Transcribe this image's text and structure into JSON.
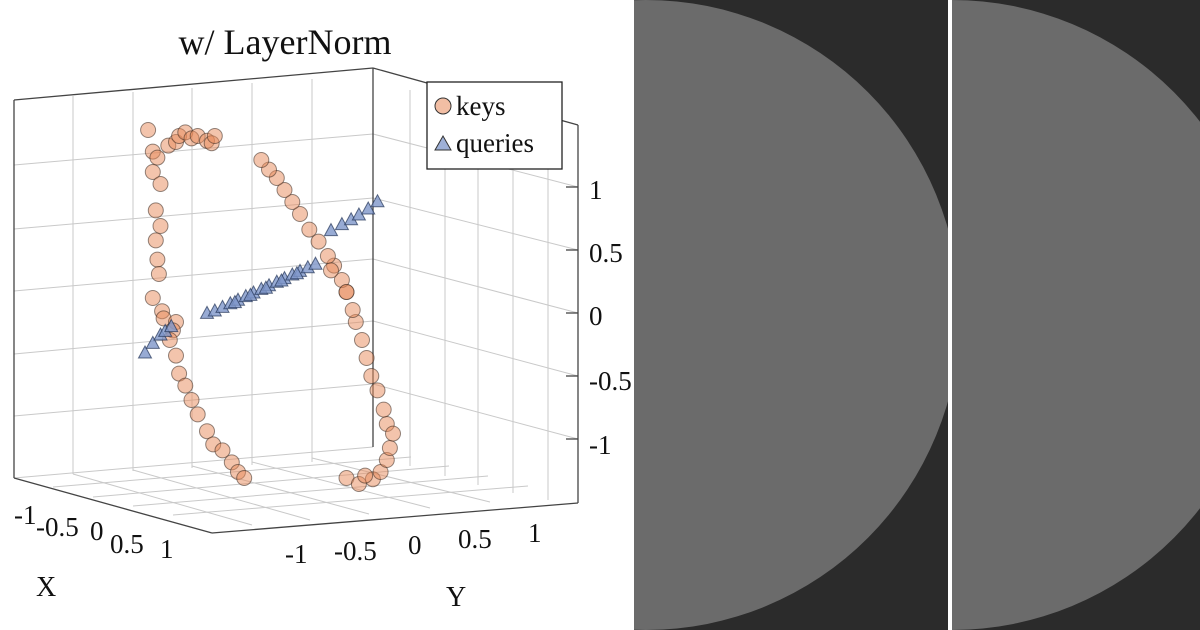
{
  "chart_data": {
    "type": "scatter",
    "title": "w/ LayerNorm",
    "xlabel": "X",
    "ylabel": "Y",
    "zlabel": "",
    "x_ticks": [
      "-1",
      "-0.5",
      "0",
      "0.5",
      "1"
    ],
    "y_ticks": [
      "-1",
      "-0.5",
      "0",
      "0.5",
      "1"
    ],
    "z_ticks": [
      "-1",
      "-0.5",
      "0",
      "0.5",
      "1"
    ],
    "xlim": [
      -1,
      1
    ],
    "ylim": [
      -1.3,
      1.2
    ],
    "zlim": [
      -1.4,
      1.5
    ],
    "grid": true,
    "legend": "top-right",
    "series": [
      {
        "name": "keys",
        "marker": "circle",
        "color": "#e8895a",
        "points": [
          [
            -0.95,
            0.02,
            1.37
          ],
          [
            -0.92,
            0.02,
            1.32
          ],
          [
            -0.95,
            0.02,
            1.2
          ],
          [
            -0.9,
            0.02,
            1.1
          ],
          [
            -0.93,
            0.02,
            0.88
          ],
          [
            -0.9,
            0.02,
            0.75
          ],
          [
            -0.93,
            0.02,
            0.63
          ],
          [
            -0.92,
            0.02,
            0.47
          ],
          [
            -0.91,
            0.02,
            0.35
          ],
          [
            -0.95,
            0.02,
            0.15
          ],
          [
            -0.89,
            0.02,
            0.04
          ],
          [
            -0.88,
            0.02,
            -0.02
          ],
          [
            -0.85,
            0.02,
            1.42
          ],
          [
            -0.8,
            0.02,
            1.45
          ],
          [
            -0.78,
            0.02,
            1.5
          ],
          [
            -0.74,
            0.02,
            1.53
          ],
          [
            -0.7,
            0.02,
            1.48
          ],
          [
            -0.66,
            0.02,
            1.5
          ],
          [
            -0.6,
            0.02,
            1.46
          ],
          [
            -0.57,
            0.02,
            1.44
          ],
          [
            -0.98,
            0.02,
            1.55
          ],
          [
            -0.55,
            0.02,
            1.5
          ],
          [
            -0.8,
            0.02,
            -0.05
          ],
          [
            -0.82,
            0.02,
            -0.12
          ],
          [
            -0.84,
            0.02,
            -0.2
          ],
          [
            -0.8,
            0.02,
            -0.33
          ],
          [
            -0.78,
            0.02,
            -0.48
          ],
          [
            -0.74,
            0.02,
            -0.58
          ],
          [
            -0.7,
            0.02,
            -0.7
          ],
          [
            -0.66,
            0.02,
            -0.82
          ],
          [
            -0.6,
            0.02,
            -0.96
          ],
          [
            -0.56,
            0.02,
            -1.07
          ],
          [
            -0.5,
            0.02,
            -1.12
          ],
          [
            -0.44,
            0.02,
            -1.22
          ],
          [
            -0.4,
            0.02,
            -1.3
          ],
          [
            -0.36,
            0.02,
            -1.35
          ],
          [
            0.47,
            0.03,
            -1.36
          ],
          [
            0.52,
            0.03,
            -1.3
          ],
          [
            0.56,
            0.03,
            -1.2
          ],
          [
            0.58,
            0.03,
            -1.1
          ],
          [
            0.56,
            0.03,
            -0.9
          ],
          [
            0.54,
            0.03,
            -0.78
          ],
          [
            0.5,
            0.03,
            -0.62
          ],
          [
            0.46,
            0.03,
            -0.5
          ],
          [
            0.43,
            0.03,
            -0.35
          ],
          [
            0.4,
            0.03,
            -0.2
          ],
          [
            0.36,
            0.03,
            -0.05
          ],
          [
            0.34,
            0.03,
            0.05
          ],
          [
            0.3,
            0.03,
            0.2
          ],
          [
            0.27,
            0.03,
            0.3
          ],
          [
            0.22,
            0.03,
            0.42
          ],
          [
            0.18,
            0.03,
            0.5
          ],
          [
            0.12,
            0.03,
            0.62
          ],
          [
            0.06,
            0.03,
            0.72
          ],
          [
            0.0,
            0.03,
            0.85
          ],
          [
            -0.05,
            0.03,
            0.95
          ],
          [
            -0.1,
            0.03,
            1.05
          ],
          [
            -0.15,
            0.03,
            1.15
          ],
          [
            -0.2,
            0.03,
            1.22
          ],
          [
            -0.25,
            0.03,
            1.3
          ],
          [
            0.3,
            0.03,
            -1.35
          ],
          [
            0.38,
            0.03,
            -1.4
          ],
          [
            0.42,
            0.03,
            -1.33
          ],
          [
            0.6,
            0.03,
            -0.98
          ],
          [
            0.3,
            0.03,
            0.2
          ],
          [
            0.2,
            0.03,
            0.38
          ]
        ]
      },
      {
        "name": "queries",
        "marker": "triangle",
        "color": "#7e96c9",
        "points": [
          [
            -1.0,
            0.0,
            -0.3
          ],
          [
            -0.95,
            0.0,
            -0.22
          ],
          [
            -0.9,
            0.0,
            -0.15
          ],
          [
            -0.87,
            0.0,
            -0.12
          ],
          [
            -0.83,
            0.0,
            -0.08
          ],
          [
            -0.6,
            0.0,
            0.03
          ],
          [
            -0.55,
            0.0,
            0.05
          ],
          [
            -0.5,
            0.0,
            0.08
          ],
          [
            -0.45,
            0.0,
            0.11
          ],
          [
            -0.4,
            0.0,
            0.14
          ],
          [
            -0.35,
            0.0,
            0.17
          ],
          [
            -0.3,
            0.0,
            0.2
          ],
          [
            -0.25,
            0.0,
            0.23
          ],
          [
            -0.2,
            0.0,
            0.26
          ],
          [
            -0.15,
            0.0,
            0.29
          ],
          [
            -0.1,
            0.0,
            0.32
          ],
          [
            -0.05,
            0.0,
            0.35
          ],
          [
            0.0,
            0.0,
            0.38
          ],
          [
            0.05,
            0.0,
            0.41
          ],
          [
            0.1,
            0.0,
            0.44
          ],
          [
            -0.42,
            0.0,
            0.12
          ],
          [
            -0.32,
            0.0,
            0.18
          ],
          [
            -0.22,
            0.0,
            0.24
          ],
          [
            -0.12,
            0.0,
            0.3
          ],
          [
            -0.02,
            0.0,
            0.36
          ],
          [
            0.2,
            0.0,
            0.72
          ],
          [
            0.27,
            0.0,
            0.77
          ],
          [
            0.33,
            0.0,
            0.81
          ],
          [
            0.38,
            0.0,
            0.85
          ],
          [
            0.44,
            0.0,
            0.9
          ],
          [
            0.5,
            0.0,
            0.96
          ]
        ]
      }
    ]
  },
  "panels": {
    "bg_color": "#2b2b2b",
    "disc_color": "#6b6b6b",
    "separator_color": "#ffffff"
  }
}
